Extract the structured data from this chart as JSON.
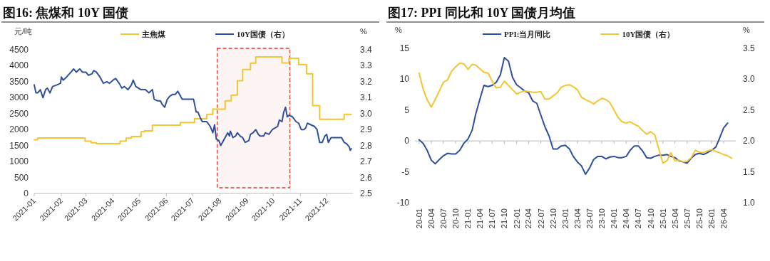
{
  "chart_data": [
    {
      "type": "line",
      "title": "图16: 焦煤和 10Y 国债",
      "ylabel": "元/吨",
      "y2label": "%",
      "xlim": [
        "2021-01-01",
        "2021-12-31"
      ],
      "xticks": [
        {
          "value": "2021-01-01",
          "label": "2021-01"
        },
        {
          "value": "2021-02-01",
          "label": "2021-02"
        },
        {
          "value": "2021-03-01",
          "label": "2021-03"
        },
        {
          "value": "2021-04-01",
          "label": "2021-04"
        },
        {
          "value": "2021-05-01",
          "label": "2021-05"
        },
        {
          "value": "2021-06-01",
          "label": "2021-06"
        },
        {
          "value": "2021-07-01",
          "label": "2021-07"
        },
        {
          "value": "2021-08-01",
          "label": "2021-08"
        },
        {
          "value": "2021-09-01",
          "label": "2021-09"
        },
        {
          "value": "2021-10-01",
          "label": "2021-10"
        },
        {
          "value": "2021-11-01",
          "label": "2021-11"
        },
        {
          "value": "2021-12-01",
          "label": "2021-12"
        }
      ],
      "ylim": [
        0,
        4500
      ],
      "yticks": [
        0,
        500,
        1000,
        1500,
        2000,
        2500,
        3000,
        3500,
        4000,
        4500
      ],
      "y2lim": [
        2.5,
        3.4
      ],
      "y2ticks": [
        {
          "value": 2.5,
          "label": "2.5"
        },
        2.6,
        2.7,
        2.8,
        2.9,
        {
          "value": 3,
          "label": "3.0"
        },
        3.1,
        3.2,
        3.3,
        3.4
      ],
      "legend": "top",
      "grid": false,
      "bands": [
        {
          "axis": "x",
          "from": "2021-07-29",
          "to": "2021-10-20",
          "color": "#e03c31"
        }
      ],
      "series": [
        {
          "name": "主焦煤",
          "type": "step",
          "color": "#f2c531",
          "x": [
            "2021-01-01",
            "2021-01-05",
            "2021-02-28",
            "2021-03-07",
            "2021-03-13",
            "2021-04-09",
            "2021-04-16",
            "2021-04-22",
            "2021-05-03",
            "2021-05-07",
            "2021-05-16",
            "2021-06-17",
            "2021-07-03",
            "2021-07-17",
            "2021-07-24",
            "2021-08-07",
            "2021-08-14",
            "2021-08-21",
            "2021-08-27",
            "2021-09-05",
            "2021-09-11",
            "2021-10-11",
            "2021-10-19",
            "2021-10-30",
            "2021-11-08",
            "2021-11-15",
            "2021-11-23",
            "2021-12-21",
            "2021-12-29"
          ],
          "values": [
            1680,
            1740,
            1640,
            1590,
            1560,
            1640,
            1730,
            1780,
            1930,
            1960,
            2140,
            2220,
            2340,
            2480,
            2640,
            2900,
            3080,
            3530,
            3880,
            4080,
            4280,
            4090,
            4230,
            4040,
            3750,
            2750,
            2320,
            2480,
            2480
          ]
        },
        {
          "name": "10Y国债（右）",
          "type": "line",
          "axis": "y2",
          "color": "#2f4f9c",
          "x": [
            "2021-01-01",
            "2021-01-03",
            "2021-01-05",
            "2021-01-08",
            "2021-01-11",
            "2021-01-14",
            "2021-01-16",
            "2021-01-19",
            "2021-01-22",
            "2021-01-27",
            "2021-01-31",
            "2021-02-01",
            "2021-02-03",
            "2021-02-07",
            "2021-02-12",
            "2021-02-15",
            "2021-02-18",
            "2021-02-22",
            "2021-02-25",
            "2021-03-01",
            "2021-03-04",
            "2021-03-08",
            "2021-03-10",
            "2021-03-13",
            "2021-03-17",
            "2021-03-21",
            "2021-03-25",
            "2021-03-28",
            "2021-04-01",
            "2021-04-04",
            "2021-04-08",
            "2021-04-11",
            "2021-04-14",
            "2021-04-18",
            "2021-04-22",
            "2021-04-24",
            "2021-04-27",
            "2021-05-03",
            "2021-05-08",
            "2021-05-12",
            "2021-05-16",
            "2021-05-18",
            "2021-05-22",
            "2021-05-25",
            "2021-05-27",
            "2021-05-30",
            "2021-06-02",
            "2021-06-05",
            "2021-06-08",
            "2021-06-11",
            "2021-06-14",
            "2021-06-16",
            "2021-06-19",
            "2021-06-24",
            "2021-06-28",
            "2021-07-02",
            "2021-07-05",
            "2021-07-07",
            "2021-07-10",
            "2021-07-12",
            "2021-07-14",
            "2021-07-17",
            "2021-07-21",
            "2021-07-24",
            "2021-07-26",
            "2021-07-28",
            "2021-07-31",
            "2021-08-02",
            "2021-08-05",
            "2021-08-08",
            "2021-08-10",
            "2021-08-12",
            "2021-08-13",
            "2021-08-16",
            "2021-08-19",
            "2021-08-21",
            "2021-08-24",
            "2021-08-27",
            "2021-08-30",
            "2021-09-03",
            "2021-09-05",
            "2021-09-08",
            "2021-09-11",
            "2021-09-14",
            "2021-09-16",
            "2021-09-20",
            "2021-09-22",
            "2021-09-26",
            "2021-09-30",
            "2021-10-06",
            "2021-10-08",
            "2021-10-11",
            "2021-10-13",
            "2021-10-15",
            "2021-10-17",
            "2021-10-19",
            "2021-10-23",
            "2021-10-27",
            "2021-10-30",
            "2021-11-02",
            "2021-11-05",
            "2021-11-07",
            "2021-11-09",
            "2021-11-13",
            "2021-11-17",
            "2021-11-20",
            "2021-11-23",
            "2021-11-26",
            "2021-11-29",
            "2021-12-01",
            "2021-12-03",
            "2021-12-06",
            "2021-12-10",
            "2021-12-16",
            "2021-12-18",
            "2021-12-21",
            "2021-12-24",
            "2021-12-27",
            "2021-12-28",
            "2021-12-29"
          ],
          "values": [
            3.18,
            3.13,
            3.13,
            3.15,
            3.1,
            3.15,
            3.16,
            3.13,
            3.17,
            3.18,
            3.19,
            3.23,
            3.21,
            3.23,
            3.26,
            3.28,
            3.26,
            3.28,
            3.26,
            3.26,
            3.24,
            3.25,
            3.27,
            3.26,
            3.23,
            3.19,
            3.2,
            3.19,
            3.21,
            3.22,
            3.19,
            3.16,
            3.17,
            3.15,
            3.18,
            3.21,
            3.17,
            3.15,
            3.15,
            3.13,
            3.15,
            3.09,
            3.08,
            3.08,
            3.06,
            3.04,
            3.09,
            3.11,
            3.12,
            3.12,
            3.14,
            3.12,
            3.09,
            3.09,
            3.09,
            3.09,
            3.01,
            3.01,
            2.97,
            2.95,
            2.95,
            2.95,
            2.92,
            2.88,
            2.93,
            2.84,
            2.83,
            2.8,
            2.83,
            2.86,
            2.88,
            2.86,
            2.89,
            2.85,
            2.86,
            2.88,
            2.86,
            2.85,
            2.82,
            2.83,
            2.87,
            2.88,
            2.9,
            2.87,
            2.86,
            2.86,
            2.88,
            2.87,
            2.9,
            2.92,
            2.96,
            2.95,
            3.01,
            3.04,
            2.98,
            2.99,
            2.98,
            2.95,
            2.94,
            2.9,
            2.9,
            2.91,
            2.94,
            2.93,
            2.92,
            2.9,
            2.82,
            2.82,
            2.86,
            2.87,
            2.82,
            2.85,
            2.85,
            2.85,
            2.85,
            2.82,
            2.81,
            2.79,
            2.77,
            2.78
          ]
        }
      ]
    },
    {
      "type": "line",
      "title": "图17: PPI 同比和 10Y 国债月均值",
      "ylabel": "%",
      "y2label": "%",
      "x": [
        "2020-01",
        "2020-02",
        "2020-03",
        "2020-04",
        "2020-05",
        "2020-06",
        "2020-07",
        "2020-08",
        "2020-09",
        "2020-10",
        "2020-11",
        "2020-12",
        "2021-01",
        "2021-02",
        "2021-03",
        "2021-04",
        "2021-05",
        "2021-06",
        "2021-07",
        "2021-08",
        "2021-09",
        "2021-10",
        "2021-11",
        "2021-12",
        "2022-01",
        "2022-02",
        "2022-03",
        "2022-04",
        "2022-05",
        "2022-06",
        "2022-07",
        "2022-08",
        "2022-09",
        "2022-10",
        "2022-11",
        "2022-12",
        "2023-01",
        "2023-02",
        "2023-03",
        "2023-04",
        "2023-05",
        "2023-06",
        "2023-07",
        "2023-08",
        "2023-09",
        "2023-10",
        "2023-11",
        "2023-12",
        "2024-01",
        "2024-02",
        "2024-03",
        "2024-04",
        "2024-05",
        "2024-06",
        "2024-07",
        "2024-08",
        "2024-09",
        "2024-10",
        "2024-11",
        "2024-12",
        "2025-01",
        "2025-02",
        "2025-03",
        "2025-04",
        "2025-05",
        "2025-06",
        "2025-07",
        "2025-08",
        "2025-09",
        "2025-10",
        "2025-11",
        "2025-12",
        "2026-01",
        "2026-02",
        "2026-03",
        "2026-04",
        "2026-05",
        "2026-06"
      ],
      "xlim": [
        "2019-12",
        "2026-07"
      ],
      "xticks": [
        {
          "value": "2020-01",
          "label": "20-01"
        },
        {
          "value": "2020-04",
          "label": "20-04"
        },
        {
          "value": "2020-07",
          "label": "20-07"
        },
        {
          "value": "2020-10",
          "label": "20-10"
        },
        {
          "value": "2021-01",
          "label": "21-01"
        },
        {
          "value": "2021-04",
          "label": "21-04"
        },
        {
          "value": "2021-07",
          "label": "21-07"
        },
        {
          "value": "2021-10",
          "label": "21-10"
        },
        {
          "value": "2022-01",
          "label": "22-01"
        },
        {
          "value": "2022-04",
          "label": "22-04"
        },
        {
          "value": "2022-07",
          "label": "22-07"
        },
        {
          "value": "2022-10",
          "label": "22-10"
        },
        {
          "value": "2023-01",
          "label": "23-01"
        },
        {
          "value": "2023-04",
          "label": "23-04"
        },
        {
          "value": "2023-07",
          "label": "23-07"
        },
        {
          "value": "2023-10",
          "label": "23-10"
        },
        {
          "value": "2024-01",
          "label": "24-01"
        },
        {
          "value": "2024-04",
          "label": "24-04"
        },
        {
          "value": "2024-07",
          "label": "24-07"
        },
        {
          "value": "2024-10",
          "label": "24-10"
        },
        {
          "value": "2025-01",
          "label": "25-01"
        },
        {
          "value": "2025-04",
          "label": "25-04"
        },
        {
          "value": "2025-07",
          "label": "25-07"
        },
        {
          "value": "2025-10",
          "label": "25-10"
        },
        {
          "value": "2026-01",
          "label": "26-01"
        },
        {
          "value": "2026-04",
          "label": "26-04"
        }
      ],
      "ylim": [
        -10,
        15
      ],
      "yticks": [
        -10,
        -5,
        0,
        5,
        10,
        15
      ],
      "y2lim": [
        1,
        3.5
      ],
      "y2ticks": [
        {
          "value": 1,
          "label": "1.0"
        },
        1.5,
        {
          "value": 2,
          "label": "2.0"
        },
        2.5,
        {
          "value": 3,
          "label": "3.0"
        },
        3.5
      ],
      "legend": "top",
      "grid": false,
      "ref_lines": [
        {
          "axis": "y",
          "value": 0,
          "color": "#bbbbbb"
        }
      ],
      "series": [
        {
          "name": "PPI:当月同比",
          "color": "#2f4f9c",
          "values": [
            0.2,
            -0.4,
            -1.5,
            -3.1,
            -3.7,
            -3.0,
            -2.4,
            -2.0,
            -2.1,
            -2.1,
            -1.5,
            -0.4,
            0.3,
            1.7,
            4.4,
            6.8,
            9.0,
            8.8,
            9.0,
            9.5,
            10.7,
            13.5,
            12.9,
            10.3,
            9.1,
            8.6,
            8.1,
            7.8,
            6.5,
            6.1,
            4.2,
            2.3,
            0.8,
            -1.3,
            -1.3,
            -0.8,
            -0.7,
            -1.3,
            -2.5,
            -3.4,
            -4.0,
            -5.4,
            -4.4,
            -3.0,
            -2.5,
            -2.5,
            -2.9,
            -2.6,
            -2.5,
            -2.7,
            -2.7,
            -2.5,
            -1.5,
            -0.8,
            -0.8,
            -1.6,
            -2.7,
            -2.8,
            -2.5,
            -2.3,
            -2.3,
            -2.2,
            -2.5,
            -2.7,
            -3.2,
            -3.4,
            -3.6,
            -2.8,
            -2.2,
            -2.0,
            -2.2,
            -1.9,
            -1.5,
            -1.0,
            0.4,
            2.1,
            2.9,
            null
          ]
        },
        {
          "name": "10Y国债（右）",
          "axis": "y2",
          "color": "#f2c531",
          "values": [
            3.1,
            2.84,
            2.67,
            2.55,
            2.67,
            2.81,
            2.95,
            2.99,
            3.13,
            3.2,
            3.26,
            3.25,
            3.16,
            3.24,
            3.23,
            3.17,
            3.11,
            3.1,
            2.97,
            2.86,
            2.87,
            2.97,
            2.9,
            2.83,
            2.76,
            2.79,
            2.81,
            2.8,
            2.79,
            2.79,
            2.8,
            2.68,
            2.68,
            2.73,
            2.78,
            2.87,
            2.9,
            2.91,
            2.88,
            2.83,
            2.71,
            2.67,
            2.64,
            2.6,
            2.65,
            2.69,
            2.67,
            2.62,
            2.5,
            2.38,
            2.31,
            2.29,
            2.31,
            2.27,
            2.24,
            2.17,
            2.11,
            2.15,
            2.1,
            1.87,
            1.64,
            1.68,
            1.81,
            1.68,
            1.69,
            1.66,
            1.67,
            1.73,
            1.85,
            1.82,
            1.81,
            1.84,
            1.86,
            1.83,
            1.81,
            1.78,
            1.76,
            1.72
          ]
        }
      ]
    }
  ]
}
